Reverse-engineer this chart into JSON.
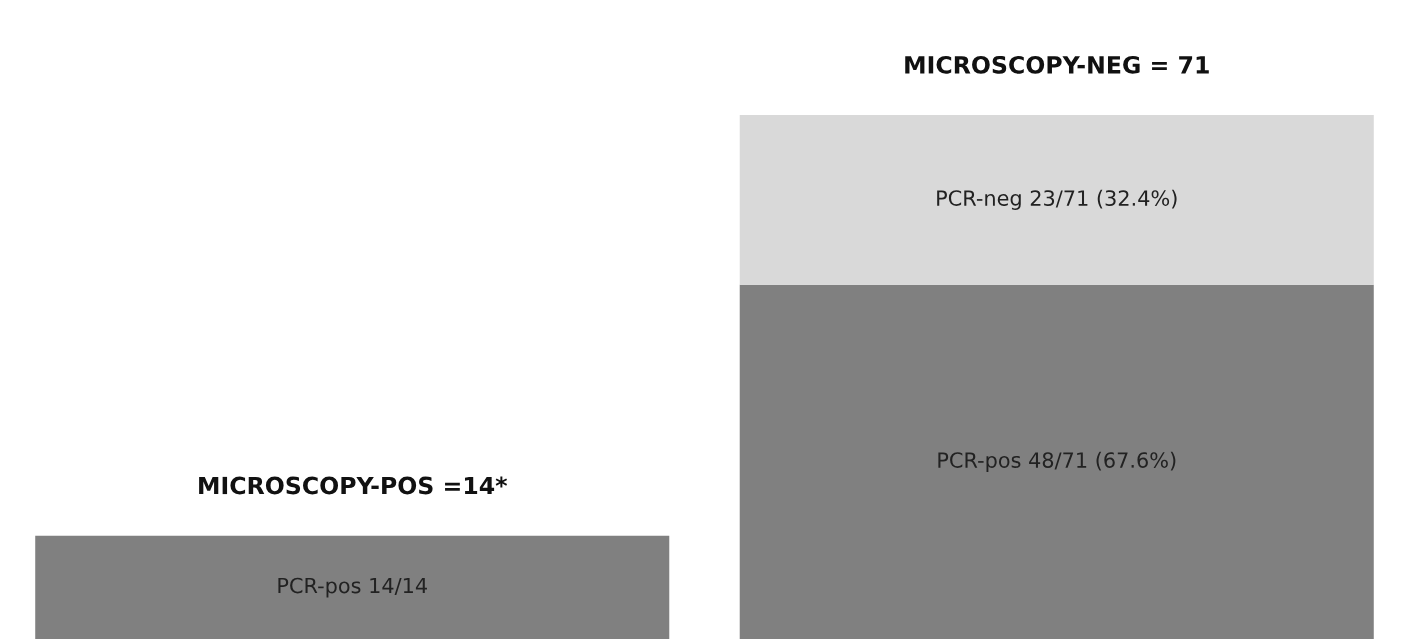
{
  "chart_data": {
    "type": "bar",
    "stacked": true,
    "categories": [
      null,
      null
    ],
    "series": [
      {
        "color": "#808080",
        "values": [
          14,
          48
        ],
        "value_labels": [
          "PCR-pos 14/14",
          "PCR-pos 48/71 (67.6%)"
        ]
      },
      {
        "color": "#d9d9d9",
        "values": [
          null,
          23
        ],
        "value_labels": [
          null,
          "PCR-neg 23/71 (32.4%)"
        ]
      }
    ],
    "totals": [
      "MICROSCOPY-POS =14*",
      "MICROSCOPY-NEG = 71"
    ]
  }
}
